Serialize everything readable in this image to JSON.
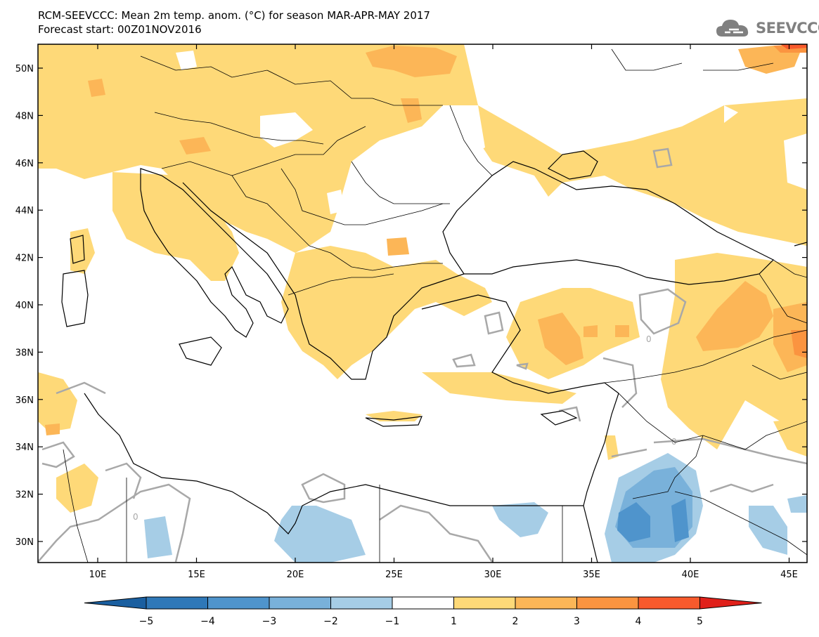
{
  "header": {
    "title_line1": "RCM-SEEVCCC: Mean 2m temp. anom. (°C) for season MAR-APR-MAY 2017",
    "title_line2": "Forecast start: 00Z01NOV2016",
    "logo_text": "SEEVCCC"
  },
  "map": {
    "lat_labels": [
      "50N",
      "48N",
      "46N",
      "44N",
      "42N",
      "40N",
      "38N",
      "36N",
      "34N",
      "32N",
      "30N"
    ],
    "lon_labels": [
      "10E",
      "15E",
      "20E",
      "25E",
      "30E",
      "35E",
      "40E",
      "45E"
    ],
    "contour_label": "0"
  },
  "colorbar": {
    "labels": [
      "−5",
      "−4",
      "−3",
      "−2",
      "−1",
      "1",
      "2",
      "3",
      "4",
      "5"
    ],
    "colors": [
      "#1a5fa0",
      "#2f78b8",
      "#4f94cc",
      "#79b1da",
      "#a6cde6",
      "#ffffff",
      "#fed978",
      "#fcb657",
      "#fb9440",
      "#f85a2c",
      "#e0201a"
    ]
  }
}
